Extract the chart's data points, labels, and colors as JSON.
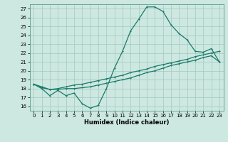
{
  "xlabel": "Humidex (Indice chaleur)",
  "bg_color": "#cce8e0",
  "grid_color": "#aaccc4",
  "line_color": "#1a7a6a",
  "xlim": [
    -0.5,
    23.5
  ],
  "ylim": [
    15.5,
    27.5
  ],
  "xticks": [
    0,
    1,
    2,
    3,
    4,
    5,
    6,
    7,
    8,
    9,
    10,
    11,
    12,
    13,
    14,
    15,
    16,
    17,
    18,
    19,
    20,
    21,
    22,
    23
  ],
  "yticks": [
    16,
    17,
    18,
    19,
    20,
    21,
    22,
    23,
    24,
    25,
    26,
    27
  ],
  "series1_x": [
    0,
    1,
    2,
    3,
    4,
    5,
    6,
    7,
    8,
    9,
    10,
    11,
    12,
    13,
    14,
    15,
    16,
    17,
    18,
    19,
    20,
    21,
    22,
    23
  ],
  "series1_y": [
    18.5,
    18.0,
    17.2,
    17.8,
    17.2,
    17.5,
    16.3,
    15.8,
    16.1,
    18.0,
    20.3,
    22.2,
    24.5,
    25.8,
    27.2,
    27.2,
    26.7,
    25.2,
    24.2,
    23.5,
    22.2,
    22.1,
    22.5,
    21.0
  ],
  "series2_x": [
    0,
    1,
    2,
    3,
    4,
    5,
    6,
    7,
    8,
    9,
    10,
    11,
    12,
    13,
    14,
    15,
    16,
    17,
    18,
    19,
    20,
    21,
    22,
    23
  ],
  "series2_y": [
    18.5,
    18.1,
    17.9,
    18.0,
    18.2,
    18.4,
    18.5,
    18.7,
    18.9,
    19.1,
    19.3,
    19.5,
    19.8,
    20.0,
    20.2,
    20.5,
    20.7,
    20.9,
    21.1,
    21.3,
    21.6,
    21.8,
    22.0,
    22.2
  ],
  "series3_x": [
    0,
    1,
    2,
    3,
    4,
    5,
    6,
    7,
    8,
    9,
    10,
    11,
    12,
    13,
    14,
    15,
    16,
    17,
    18,
    19,
    20,
    21,
    22,
    23
  ],
  "series3_y": [
    18.5,
    18.2,
    17.9,
    17.9,
    18.0,
    18.0,
    18.1,
    18.2,
    18.4,
    18.6,
    18.8,
    19.0,
    19.2,
    19.5,
    19.8,
    20.0,
    20.3,
    20.6,
    20.8,
    21.0,
    21.2,
    21.5,
    21.7,
    21.0
  ]
}
